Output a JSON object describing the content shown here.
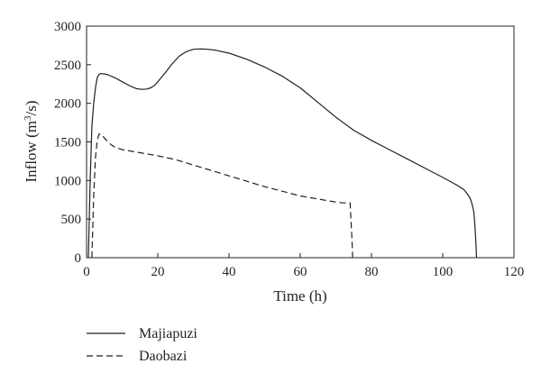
{
  "chart_data": {
    "type": "line",
    "title": "",
    "xlabel": "Time (h)",
    "ylabel_main": "Inflow (m",
    "ylabel_sup": "3",
    "ylabel_tail": "/s)",
    "xlim": [
      0,
      120
    ],
    "ylim": [
      0,
      3000
    ],
    "xticks": [
      0,
      20,
      40,
      60,
      80,
      100,
      120
    ],
    "yticks": [
      0,
      500,
      1000,
      1500,
      2000,
      2500,
      3000
    ],
    "grid": false,
    "legend_position": "bottom-left",
    "series": [
      {
        "name": "Majiapuzi",
        "style": "solid",
        "color": "#231f20",
        "x": [
          0.5,
          1,
          1.5,
          2,
          2.5,
          3,
          3.5,
          4,
          5,
          6,
          8,
          10,
          12,
          14,
          15.5,
          17,
          18,
          19,
          20,
          22,
          24,
          26,
          28,
          30,
          32,
          34,
          36,
          40,
          45,
          50,
          55,
          60,
          65,
          70,
          75,
          80,
          85,
          90,
          95,
          100,
          104,
          106,
          107,
          107.7,
          108.2,
          108.7,
          109,
          109.2,
          109.4,
          109.5
        ],
        "y": [
          0,
          1000,
          1700,
          2000,
          2200,
          2330,
          2375,
          2385,
          2380,
          2370,
          2330,
          2280,
          2230,
          2190,
          2180,
          2185,
          2200,
          2230,
          2280,
          2390,
          2510,
          2610,
          2670,
          2700,
          2705,
          2700,
          2690,
          2650,
          2570,
          2470,
          2350,
          2200,
          2010,
          1820,
          1650,
          1520,
          1400,
          1280,
          1160,
          1040,
          940,
          880,
          820,
          770,
          700,
          600,
          450,
          300,
          120,
          0
        ]
      },
      {
        "name": "Daobazi",
        "style": "dashed",
        "color": "#231f20",
        "x": [
          1.5,
          2,
          2.5,
          3,
          3.5,
          4,
          4.5,
          5,
          6,
          7,
          8,
          10,
          15,
          20,
          25,
          30,
          35,
          40,
          45,
          50,
          55,
          60,
          65,
          70,
          72,
          73,
          74,
          74.5,
          74.7
        ],
        "y": [
          0,
          800,
          1300,
          1520,
          1600,
          1600,
          1580,
          1550,
          1500,
          1460,
          1430,
          1400,
          1360,
          1320,
          1270,
          1200,
          1130,
          1060,
          990,
          920,
          860,
          800,
          760,
          720,
          710,
          710,
          710,
          250,
          0
        ]
      }
    ]
  }
}
